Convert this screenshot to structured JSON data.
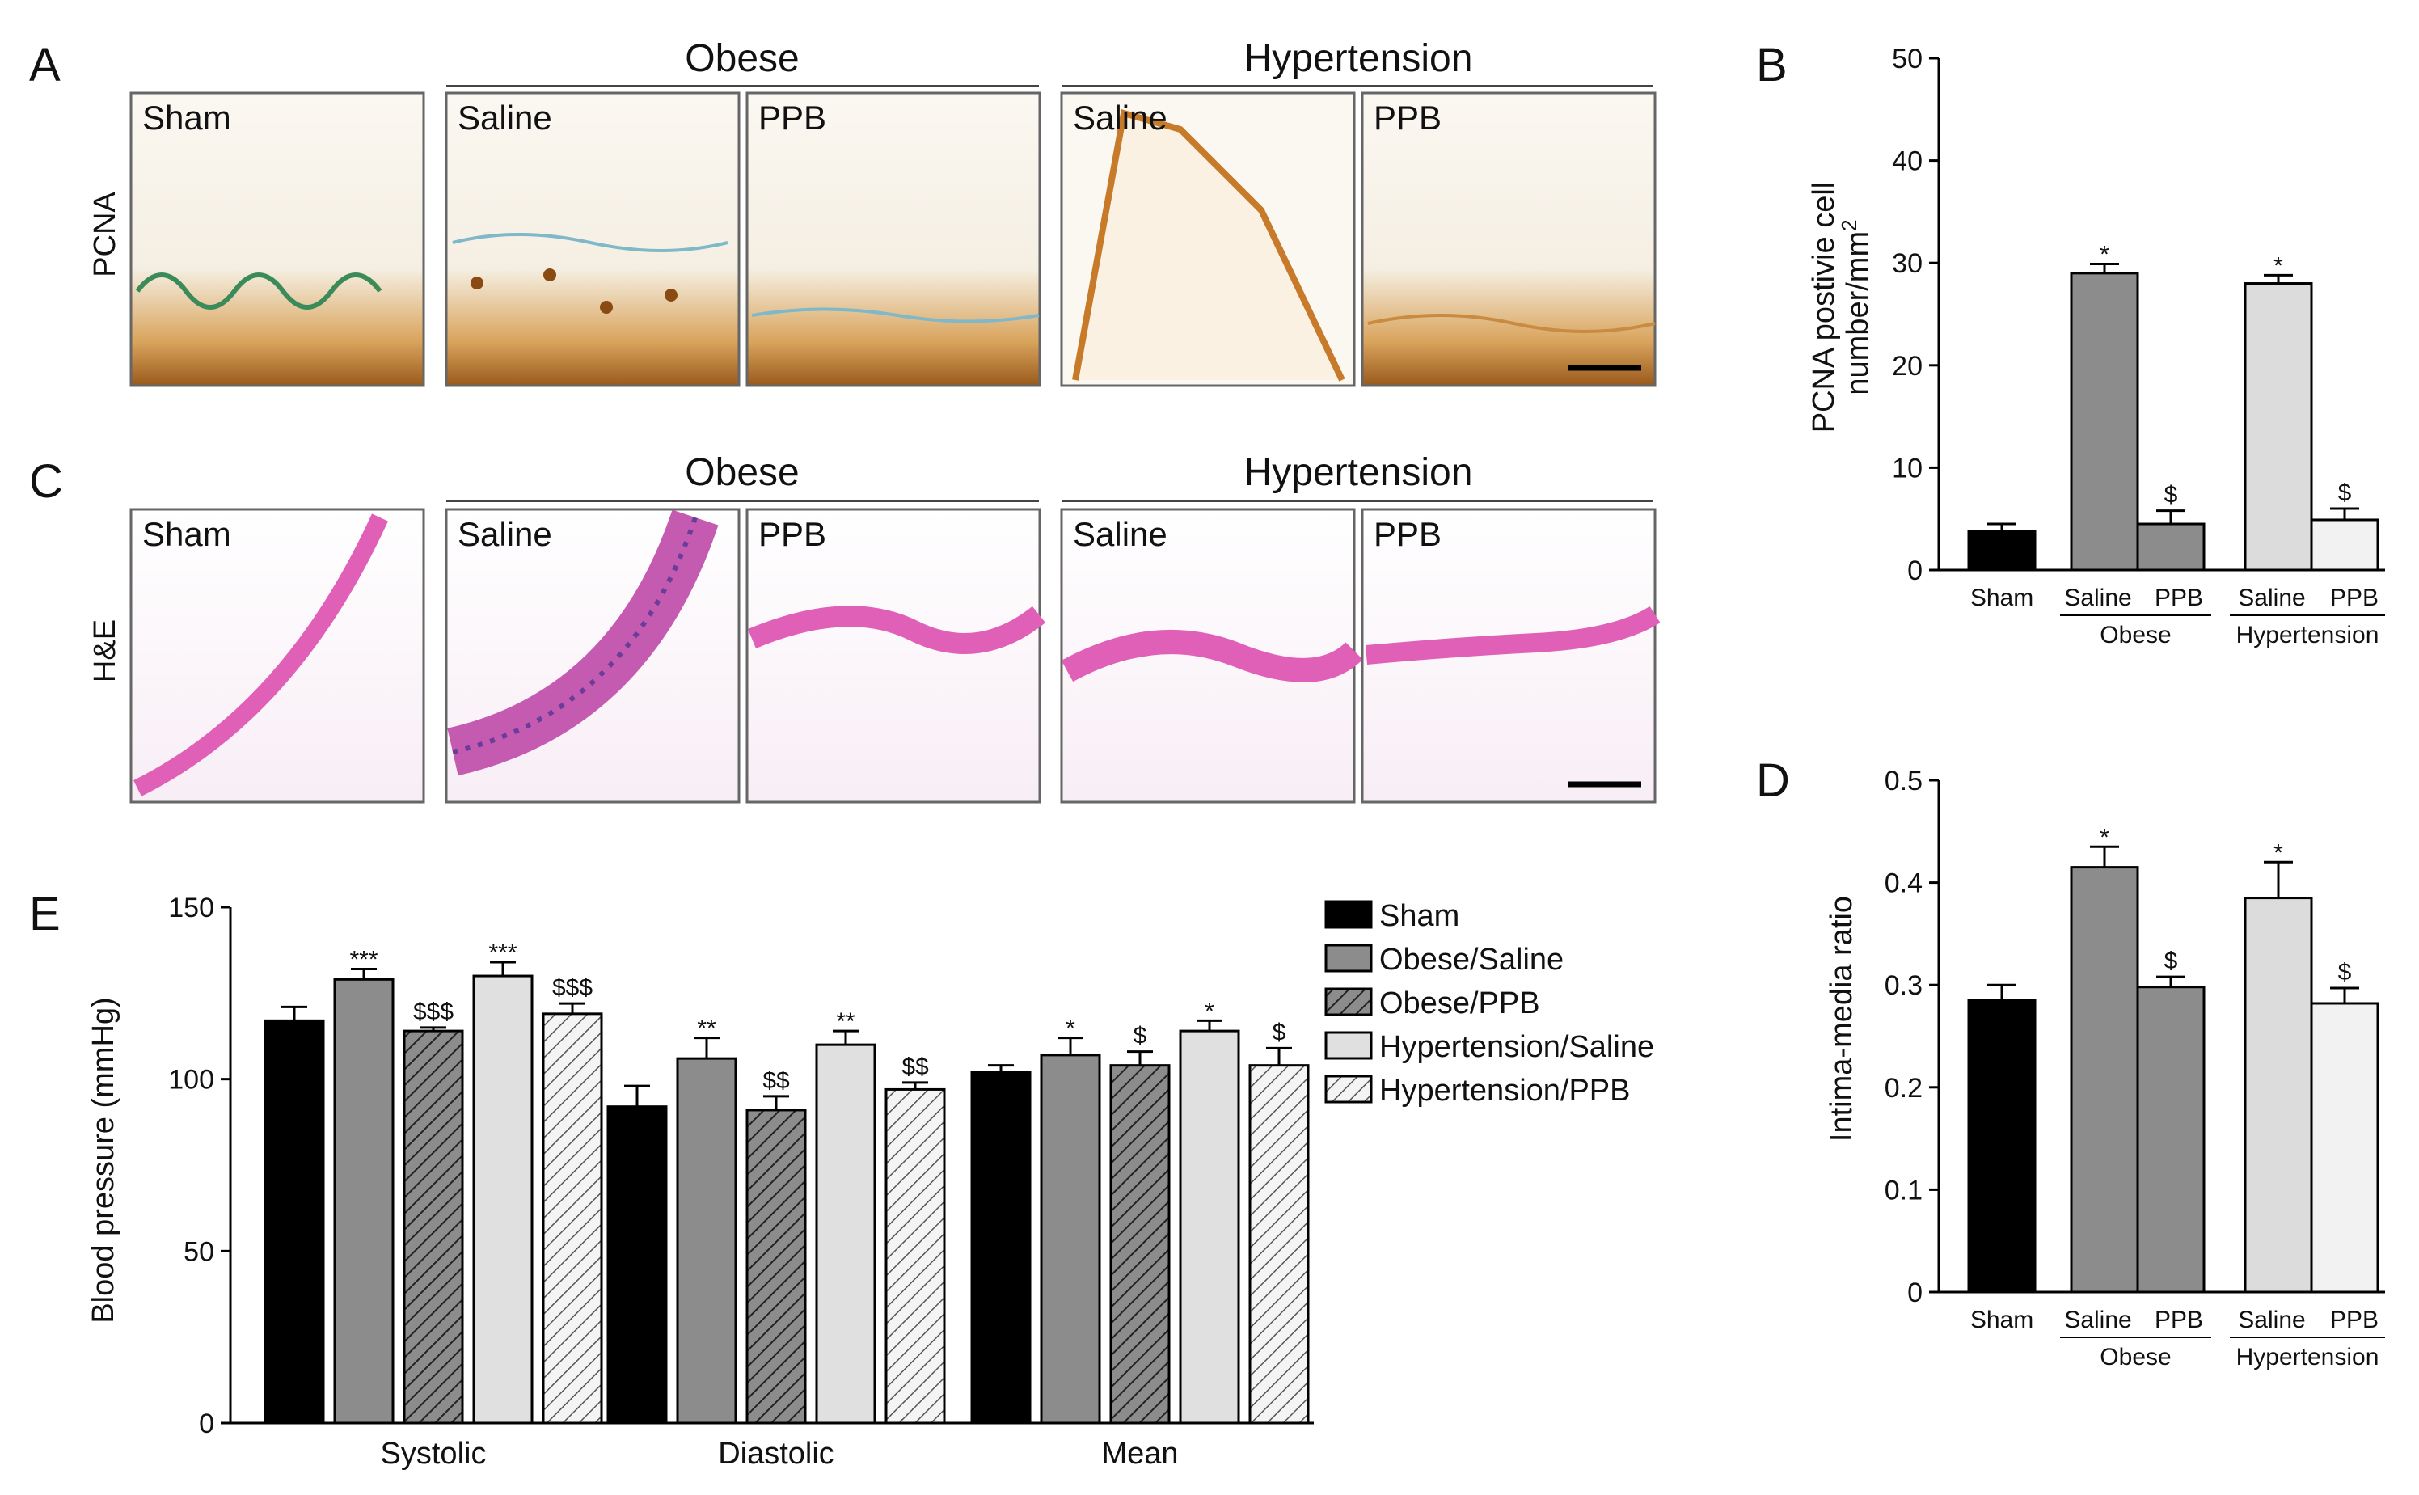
{
  "panel_labels": {
    "a": "A",
    "b": "B",
    "c": "C",
    "d": "D",
    "e": "E"
  },
  "micro_a": {
    "row_label": "PCNA",
    "groups": [
      "Obese",
      "Hypertension"
    ],
    "images": [
      "Sham",
      "Saline",
      "PPB",
      "Saline",
      "PPB"
    ]
  },
  "micro_c": {
    "row_label": "H&E",
    "groups": [
      "Obese",
      "Hypertension"
    ],
    "images": [
      "Sham",
      "Saline",
      "PPB",
      "Saline",
      "PPB"
    ]
  },
  "colors": {
    "sham": "#000000",
    "obese_saline": "#8c8c8c",
    "obese_ppb": "#8c8c8c",
    "hyp_saline": "#dcdcdc",
    "hyp_ppb": "#f2f2f2",
    "pcna_brown": "#b5651d",
    "he_pink": "#e060b8",
    "he_purple": "#6a3d9a"
  },
  "chart_data": [
    {
      "id": "B",
      "type": "bar",
      "ylabel_line1": "PCNA postivie cell",
      "ylabel_line2": "number/mm",
      "ylabel_sup": "2",
      "ylim": [
        0,
        50
      ],
      "yticks": [
        "0",
        "10",
        "20",
        "30",
        "40",
        "50"
      ],
      "categories": [
        "Sham",
        "Saline",
        "PPB",
        "Saline",
        "PPB"
      ],
      "groups": [
        "Obese",
        "Hypertension"
      ],
      "values": [
        3.8,
        29,
        4.5,
        28,
        4.9
      ],
      "errors": [
        0.7,
        0.9,
        1.3,
        0.8,
        1.1
      ],
      "annotations": [
        "",
        "*",
        "$",
        "*",
        "$"
      ]
    },
    {
      "id": "D",
      "type": "bar",
      "ylabel": "Intima-media ratio",
      "ylim": [
        0,
        0.5
      ],
      "yticks": [
        "0",
        "0.1",
        "0.2",
        "0.3",
        "0.4",
        "0.5"
      ],
      "categories": [
        "Sham",
        "Saline",
        "PPB",
        "Saline",
        "PPB"
      ],
      "groups": [
        "Obese",
        "Hypertension"
      ],
      "values": [
        0.285,
        0.415,
        0.298,
        0.385,
        0.282
      ],
      "errors": [
        0.015,
        0.02,
        0.01,
        0.035,
        0.015
      ],
      "annotations": [
        "",
        "*",
        "$",
        "*",
        "$"
      ]
    },
    {
      "id": "E",
      "type": "bar",
      "ylabel": "Blood pressure (mmHg)",
      "ylim": [
        0,
        150
      ],
      "yticks": [
        "0",
        "50",
        "100",
        "150"
      ],
      "categories": [
        "Systolic",
        "Diastolic",
        "Mean"
      ],
      "series": [
        {
          "name": "Sham",
          "values": [
            117,
            92,
            102
          ],
          "errors": [
            4,
            6,
            2
          ],
          "annotations": [
            "",
            "",
            ""
          ]
        },
        {
          "name": "Obese/Saline",
          "values": [
            129,
            106,
            107
          ],
          "errors": [
            3,
            6,
            5
          ],
          "annotations": [
            "***",
            "**",
            "*"
          ]
        },
        {
          "name": "Obese/PPB",
          "values": [
            114,
            91,
            104
          ],
          "errors": [
            1,
            4,
            4
          ],
          "annotations": [
            "$$$",
            "$$",
            "$"
          ]
        },
        {
          "name": "Hypertension/Saline",
          "values": [
            130,
            110,
            114
          ],
          "errors": [
            4,
            4,
            3
          ],
          "annotations": [
            "***",
            "**",
            "*"
          ]
        },
        {
          "name": "Hypertension/PPB",
          "values": [
            119,
            97,
            104
          ],
          "errors": [
            3,
            2,
            5
          ],
          "annotations": [
            "$$$",
            "$$",
            "$"
          ]
        }
      ]
    }
  ]
}
